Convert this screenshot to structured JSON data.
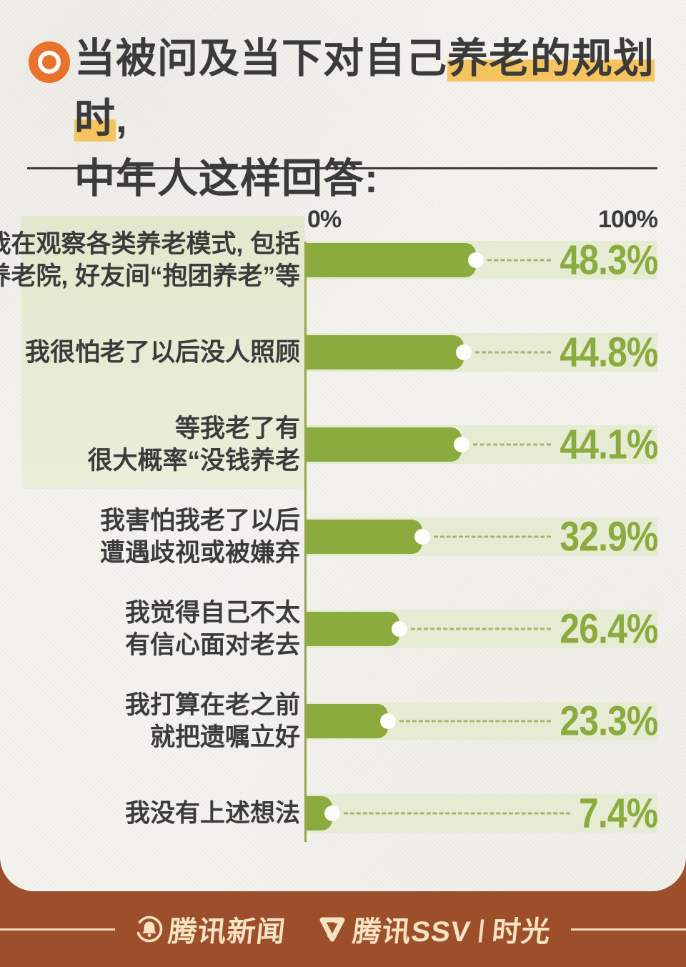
{
  "title": {
    "prefix": "当被问及当下对自己",
    "highlight": "养老的规划时",
    "suffix": ",",
    "line2": "中年人这样回答:"
  },
  "axis": {
    "zero": "0%",
    "hundred": "100%"
  },
  "chart_data": {
    "type": "bar",
    "orientation": "horizontal",
    "xlim": [
      0,
      100
    ],
    "grid": false,
    "categories": [
      "我在观察各类养老模式, 包括\n养老院, 好友间“抱团养老”等",
      "我很怕老了以后没人照顾",
      "等我老了有\n很大概率“没钱养老",
      "我害怕我老了以后\n遭遇歧视或被嫌弃",
      "我觉得自己不太\n有信心面对老去",
      "我打算在老之前\n就把遗嘱立好",
      "我没有上述想法"
    ],
    "values": [
      48.3,
      44.8,
      44.1,
      32.9,
      26.4,
      23.3,
      7.4
    ],
    "value_labels": [
      "48.3%",
      "44.8%",
      "44.1%",
      "32.9%",
      "26.4%",
      "23.3%",
      "7.4%"
    ]
  },
  "footer": {
    "news_label": "腾讯新闻",
    "ssv_label": "腾讯SSV",
    "separator": "|",
    "time_label": "时光"
  },
  "colors": {
    "bar_green": "#8cab3f",
    "track_green": "#e6ebd3",
    "label_block_green": "#e5ebd3",
    "title_text": "#3b3b3b",
    "highlight_yellow": "#f6c45e",
    "bullseye_orange": "#e8732c",
    "footer_brown": "#9d4e2b",
    "footer_cream": "#f6e3c2"
  }
}
